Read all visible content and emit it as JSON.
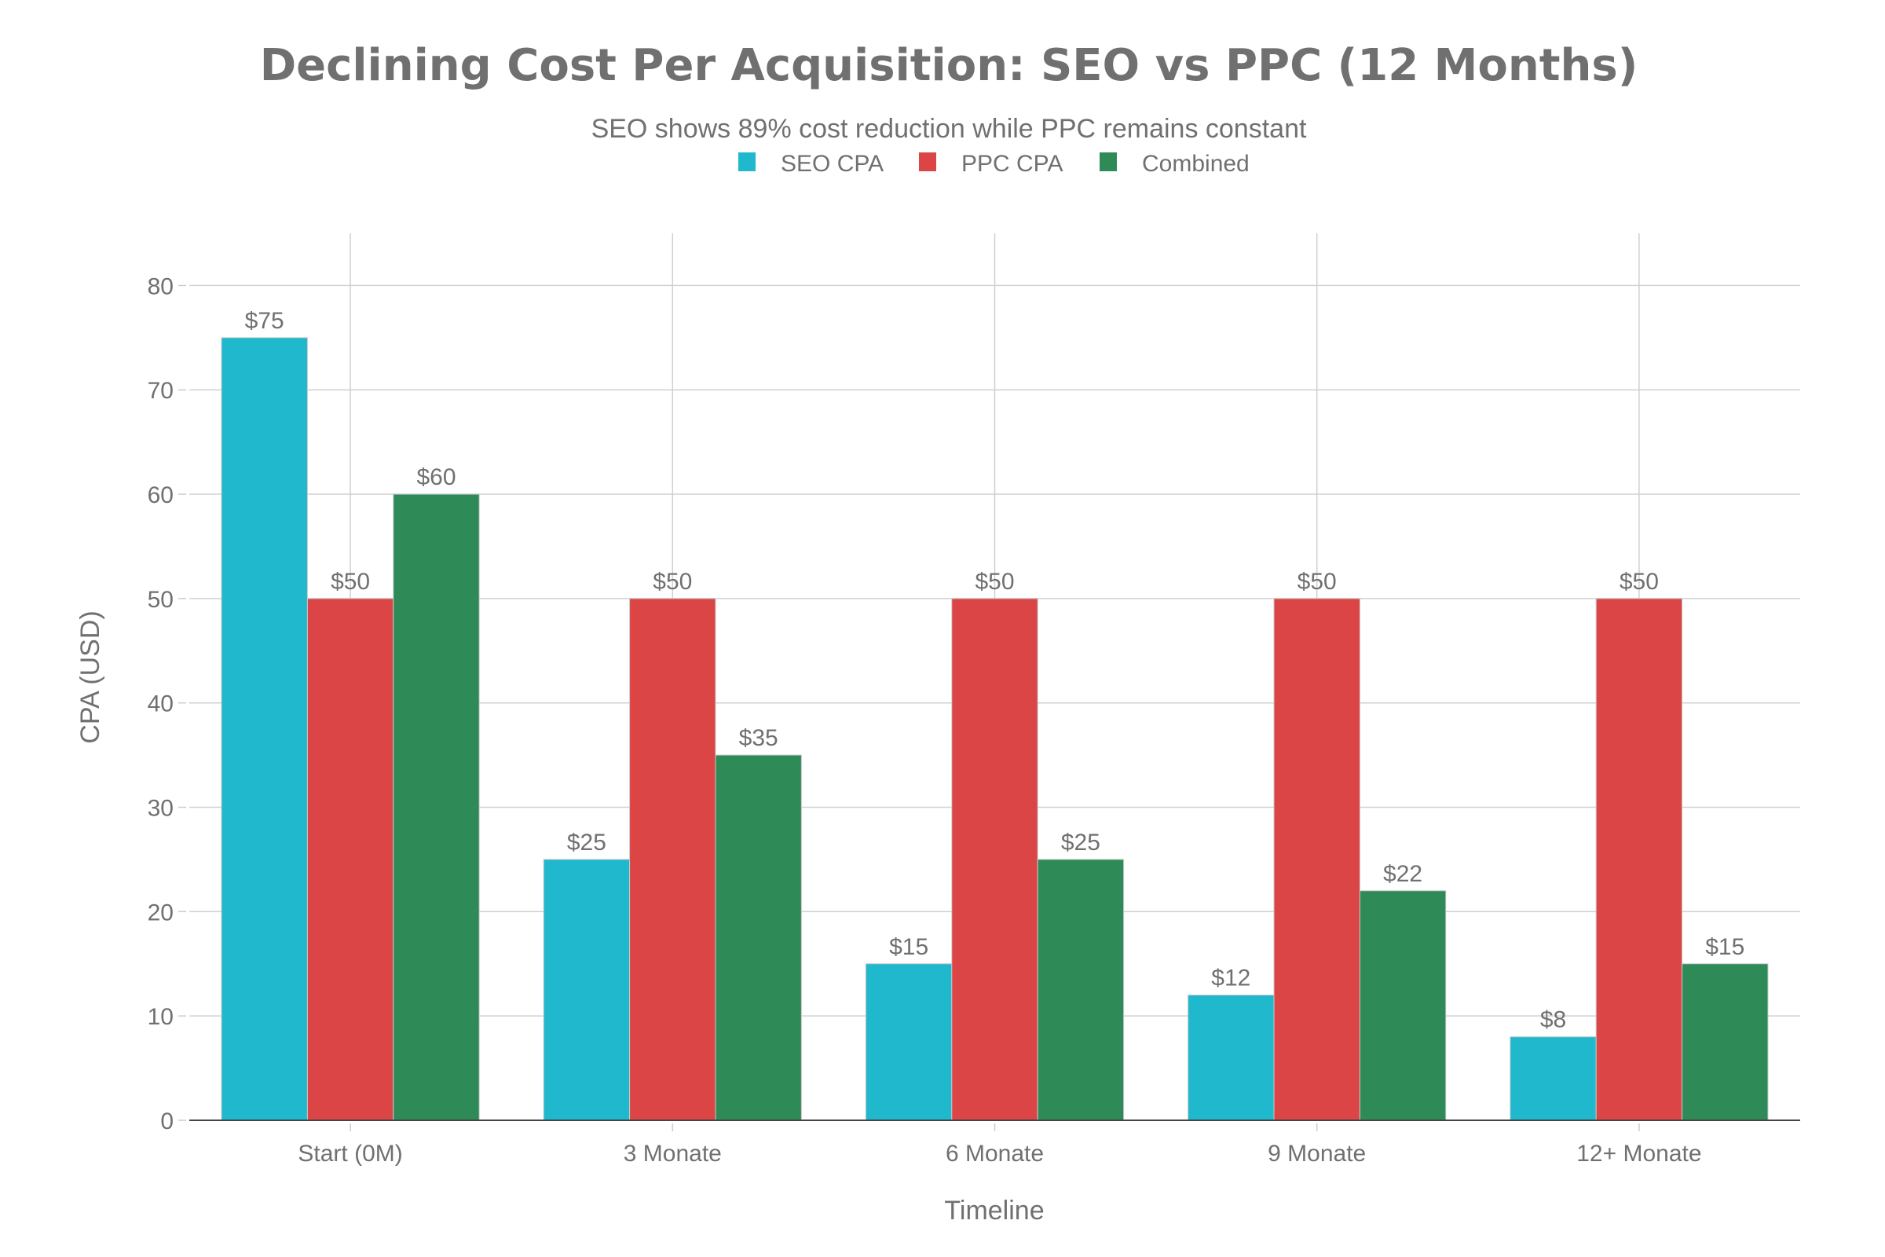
{
  "chart_data": {
    "type": "bar",
    "title": "Declining Cost Per Acquisition: SEO vs PPC (12 Months)",
    "subtitle": "SEO shows 89% cost reduction while PPC remains constant",
    "xlabel": "Timeline",
    "ylabel": "CPA (USD)",
    "categories": [
      "Start (0M)",
      "3 Monate",
      "6 Monate",
      "9 Monate",
      "12+ Monate"
    ],
    "series": [
      {
        "name": "SEO CPA",
        "color": "#1FB8CD",
        "values": [
          75,
          25,
          15,
          12,
          8
        ],
        "labels": [
          "$75",
          "$25",
          "$15",
          "$12",
          "$8"
        ]
      },
      {
        "name": "PPC CPA",
        "color": "#DB4545",
        "values": [
          50,
          50,
          50,
          50,
          50
        ],
        "labels": [
          "$50",
          "$50",
          "$50",
          "$50",
          "$50"
        ]
      },
      {
        "name": "Combined",
        "color": "#2E8B57",
        "values": [
          60,
          35,
          25,
          22,
          15
        ],
        "labels": [
          "$60",
          "$35",
          "$25",
          "$22",
          "$15"
        ]
      }
    ],
    "ylim": [
      0,
      85
    ],
    "yticks": [
      0,
      10,
      20,
      30,
      40,
      50,
      60,
      70,
      80
    ],
    "grid": true,
    "legend": "top-center"
  }
}
